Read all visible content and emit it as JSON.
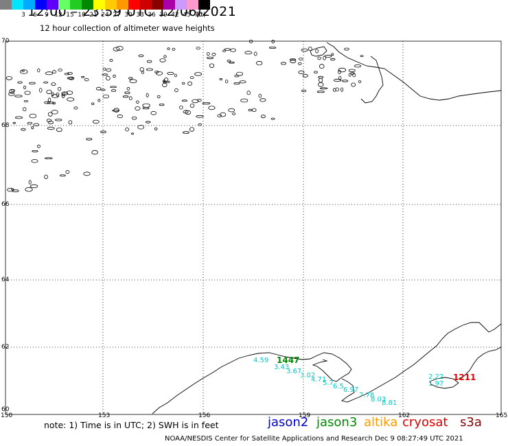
{
  "header": {
    "title": "12:00 – 23:59 UTC 12/06/2021",
    "subtitle": "12 hour collection of altimeter wave heights"
  },
  "legend": {
    "unit": "(ft)",
    "items": [
      {
        "label": "",
        "color": "#7f7f7f"
      },
      {
        "label": "3",
        "color": "#00e5ff"
      },
      {
        "label": "6",
        "color": "#00aaff"
      },
      {
        "label": "9",
        "color": "#0000ff"
      },
      {
        "label": "12",
        "color": "#5f00ff"
      },
      {
        "label": "15",
        "color": "#66ff66"
      },
      {
        "label": "18",
        "color": "#22cc22"
      },
      {
        "label": "21",
        "color": "#008800"
      },
      {
        "label": "24",
        "color": "#ffff00"
      },
      {
        "label": "27",
        "color": "#ffcc00"
      },
      {
        "label": "30",
        "color": "#ff9900"
      },
      {
        "label": "33",
        "color": "#ff0000"
      },
      {
        "label": "36",
        "color": "#cc0000"
      },
      {
        "label": "39",
        "color": "#880000"
      },
      {
        "label": "42",
        "color": "#aa00aa"
      },
      {
        "label": "45",
        "color": "#cc99ff"
      },
      {
        "label": "70",
        "color": "#ff99cc"
      },
      {
        "label": "",
        "color": "#000000"
      }
    ]
  },
  "axes": {
    "lat_labels": [
      "70",
      "68",
      "66",
      "64",
      "62",
      "60"
    ],
    "lon_labels": [
      "150",
      "153",
      "156",
      "159",
      "162",
      "165"
    ]
  },
  "observations": [
    {
      "text": "4.59",
      "color": "#00c8c8"
    },
    {
      "text": "1447",
      "color": "#008800"
    },
    {
      "text": "3.43",
      "color": "#00c8c8"
    },
    {
      "text": "3.67",
      "color": "#00c8c8"
    },
    {
      "text": "3.02",
      "color": "#00c8c8"
    },
    {
      "text": "4.71",
      "color": "#00c8c8"
    },
    {
      "text": "5.7",
      "color": "#00c8c8"
    },
    {
      "text": "6.5",
      "color": "#00c8c8"
    },
    {
      "text": "6.97",
      "color": "#00c8c8"
    },
    {
      "text": "7.78",
      "color": "#00c8c8"
    },
    {
      "text": "8.03",
      "color": "#00c8c8"
    },
    {
      "text": "8.81",
      "color": "#00c8c8"
    },
    {
      "text": "2.22",
      "color": "#00c8c8"
    },
    {
      "text": "1.97",
      "color": "#00c8c8"
    },
    {
      "text": "1211",
      "color": "#dd0000"
    }
  ],
  "footer": {
    "note": "note: 1) Time is in UTC; 2) SWH is in feet",
    "satellites": [
      {
        "name": "jason2",
        "color": "#0000cc"
      },
      {
        "name": "jason3",
        "color": "#008800"
      },
      {
        "name": "altika",
        "color": "#ff9900"
      },
      {
        "name": "cryosat",
        "color": "#dd0000"
      },
      {
        "name": "s3a",
        "color": "#880000"
      }
    ],
    "credit": "NOAA/NESDIS Center for Satellite Applications and Research    Dec  9 08:27:49 UTC 2021"
  }
}
